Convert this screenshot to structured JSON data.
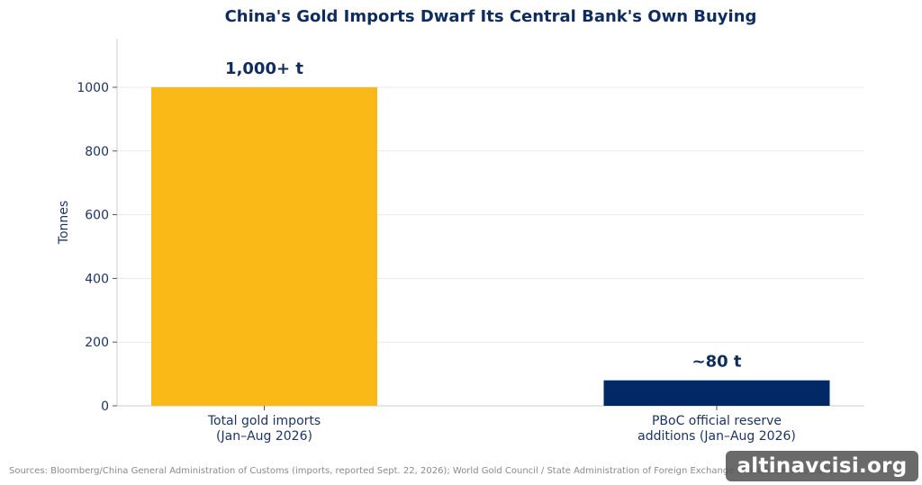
{
  "chart_data": {
    "type": "bar",
    "title": "China's Gold Imports Dwarf Its Central Bank's Own Buying",
    "ylabel": "Tonnes",
    "xlabel": "",
    "ylim": [
      0,
      1150
    ],
    "yticks": [
      0,
      200,
      400,
      600,
      800,
      1000
    ],
    "grid": true,
    "categories": [
      [
        "Total gold imports",
        "(Jan–Aug 2026)"
      ],
      [
        "PBoC official reserve",
        "additions (Jan–Aug 2026)"
      ]
    ],
    "values": [
      1000,
      80
    ],
    "data_labels": [
      "1,000+ t",
      "~80 t"
    ],
    "colors": [
      "#fbb917",
      "#002966"
    ]
  },
  "source": "Sources: Bloomberg/China General Administration of Customs (imports, reported Sept. 22, 2026); World Gold Council / State Administration of Foreign Exchange (PBoC reserves, 2026)",
  "watermark": "altinavcisi.org"
}
